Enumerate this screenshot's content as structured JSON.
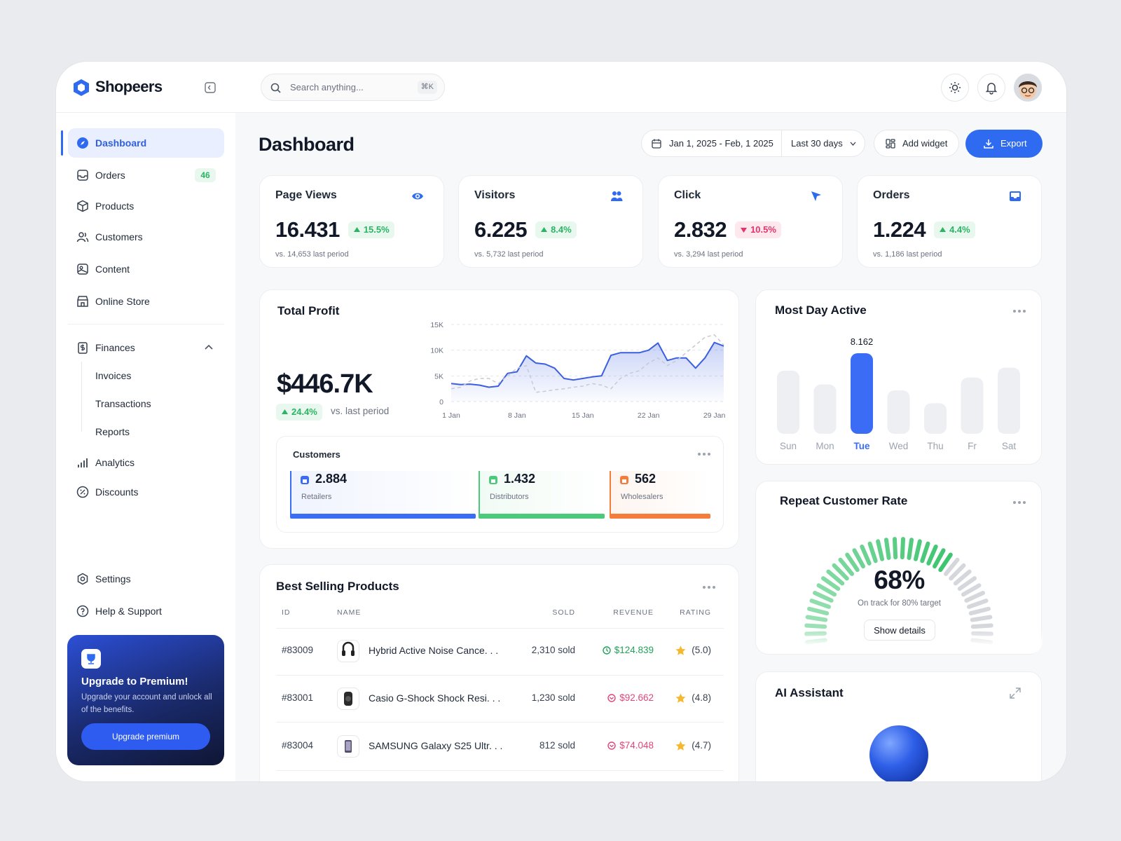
{
  "brand": "Shopeers",
  "search": {
    "placeholder": "Search anything...",
    "shortcut": "⌘K"
  },
  "nav": [
    {
      "label": "Dashboard",
      "active": true
    },
    {
      "label": "Orders",
      "badge": 46
    },
    {
      "label": "Products"
    },
    {
      "label": "Customers"
    },
    {
      "label": "Content"
    },
    {
      "label": "Online Store"
    }
  ],
  "finances": {
    "label": "Finances",
    "items": [
      "Invoices",
      "Transactions",
      "Reports"
    ]
  },
  "nav_more": [
    {
      "label": "Analytics"
    },
    {
      "label": "Discounts"
    }
  ],
  "nav_bottom": [
    {
      "label": "Settings"
    },
    {
      "label": "Help & Support"
    }
  ],
  "promo": {
    "title": "Upgrade to Premium!",
    "text": "Upgrade your account and unlock all of the benefits.",
    "button": "Upgrade premium"
  },
  "header": {
    "title": "Dashboard",
    "date_range": "Jan 1, 2025 - Feb, 1 2025",
    "period": "Last 30 days",
    "add_widget": "Add widget",
    "export": "Export"
  },
  "stats": [
    {
      "label": "Page Views",
      "value": "16.431",
      "change": "15.5%",
      "trend": "up",
      "compare": "vs. 14,653 last period"
    },
    {
      "label": "Visitors",
      "value": "6.225",
      "change": "8.4%",
      "trend": "up",
      "compare": "vs. 5,732 last period"
    },
    {
      "label": "Click",
      "value": "2.832",
      "change": "10.5%",
      "trend": "down",
      "compare": "vs. 3,294 last period"
    },
    {
      "label": "Orders",
      "value": "1.224",
      "change": "4.4%",
      "trend": "up",
      "compare": "vs. 1,186 last period"
    }
  ],
  "total_profit": {
    "title": "Total Profit",
    "value": "$446.7K",
    "change": "24.4%",
    "trend": "up",
    "compare": "vs. last period"
  },
  "customers": {
    "title": "Customers",
    "segments": [
      {
        "label": "Retailers",
        "value": 2884,
        "value_label": "2.884",
        "color": "#3b6cf6"
      },
      {
        "label": "Distributors",
        "value": 1432,
        "value_label": "1.432",
        "color": "#4cc97a"
      },
      {
        "label": "Wholesalers",
        "value": 562,
        "value_label": "562",
        "color": "#f57c3a"
      }
    ]
  },
  "chart_data": [
    {
      "type": "line",
      "x": [
        1,
        2,
        3,
        4,
        5,
        6,
        7,
        8,
        9,
        10,
        11,
        12,
        13,
        14,
        15,
        16,
        17,
        18,
        19,
        20,
        21,
        22,
        23,
        24,
        25,
        26,
        27,
        28,
        29,
        30
      ],
      "series": [
        {
          "color": "#3b5fe0",
          "values": [
            3500,
            3300,
            3400,
            3200,
            2800,
            3000,
            5500,
            5800,
            8900,
            7500,
            7300,
            6500,
            4500,
            4200,
            4500,
            4800,
            5000,
            9000,
            9500,
            9500,
            9500,
            10000,
            11400,
            8000,
            8500,
            8500,
            6500,
            8500,
            11500,
            10800
          ]
        },
        {
          "color": "#c7cad2",
          "dashed": true,
          "values": [
            2500,
            2800,
            4000,
            4500,
            4500,
            3500,
            5000,
            6500,
            7000,
            1800,
            2000,
            2300,
            2500,
            2800,
            3000,
            3500,
            3200,
            2500,
            4500,
            5500,
            6000,
            7500,
            8500,
            7000,
            8000,
            9500,
            11000,
            12500,
            13000,
            11000
          ]
        }
      ],
      "xlim": [
        1,
        30
      ],
      "xticks": [
        {
          "value": 1,
          "label": "1 Jan"
        },
        {
          "value": 8,
          "label": "8 Jan"
        },
        {
          "value": 15,
          "label": "15 Jan"
        },
        {
          "value": 22,
          "label": "22 Jan"
        },
        {
          "value": 29,
          "label": "29 Jan"
        }
      ],
      "ylim": [
        0,
        15000
      ],
      "yticks": [
        0,
        {
          "value": 5000,
          "label": "5K"
        },
        {
          "value": 10000,
          "label": "10K"
        },
        {
          "value": 15000,
          "label": "15K"
        }
      ],
      "grid": true
    },
    {
      "type": "bar",
      "title": "Most Day Active",
      "categories": [
        "Sun",
        "Mon",
        "Tue",
        "Wed",
        "Thu",
        "Fr",
        "Sat"
      ],
      "values": [
        6400,
        5000,
        8162,
        4400,
        3100,
        5700,
        6700
      ],
      "value_labels": [
        null,
        null,
        "8.162",
        null,
        null,
        null,
        null
      ],
      "color": "#eeeff2",
      "highlight": 2,
      "highlight_color": "#3b6cf6"
    },
    {
      "type": "gauge",
      "title": "Repeat Customer Rate",
      "value": 68,
      "value_label": "68%",
      "note": "On track for 80% target",
      "button": "Show details",
      "color": "#3cc46e",
      "track_color": "#d5d7dc"
    }
  ],
  "best_selling": {
    "title": "Best Selling Products",
    "columns": [
      "ID",
      "NAME",
      "SOLD",
      "REVENUE",
      "RATING"
    ],
    "rows": [
      [
        "#83009",
        "Hybrid Active Noise Cance. . .",
        "2,310 sold",
        "$124.839",
        "(5.0)"
      ],
      [
        "#83001",
        "Casio G-Shock Shock Resi. . .",
        "1,230 sold",
        "$92.662",
        "(4.8)"
      ],
      [
        "#83004",
        "SAMSUNG Galaxy S25 Ultr. . .",
        "812 sold",
        "$74.048",
        "(4.7)"
      ]
    ],
    "revenue_trend": [
      "up",
      "down",
      "down"
    ]
  },
  "ai": {
    "title": "AI Assistant"
  }
}
